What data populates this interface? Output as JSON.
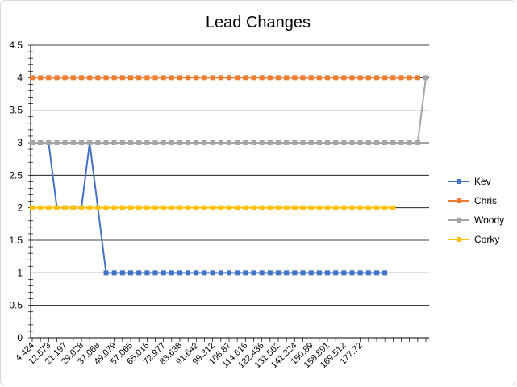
{
  "chart_data": {
    "type": "line",
    "title": "Lead Changes",
    "xlabel": "",
    "ylabel": "",
    "ylim": [
      0,
      4.5
    ],
    "ytick_step": 0.5,
    "yticks": [
      "0",
      "0.5",
      "1",
      "1.5",
      "2",
      "2.5",
      "3",
      "3.5",
      "4",
      "4.5"
    ],
    "grid": true,
    "legend": "right",
    "x_point_count": 49,
    "xtick_labels": [
      "4.424",
      "12.573",
      "21.197",
      "29.028",
      "37.068",
      "49.079",
      "57.065",
      "65.016",
      "72.977",
      "83.638",
      "91.642",
      "99.312",
      "106.87",
      "114.616",
      "122.436",
      "131.562",
      "141.324",
      "150.89",
      "158.891",
      "169.512",
      "177.72"
    ],
    "series": [
      {
        "name": "Kev",
        "color": "#4472C4",
        "values": [
          3,
          3,
          3,
          2,
          2,
          2,
          2,
          3,
          2,
          1,
          1,
          1,
          1,
          1,
          1,
          1,
          1,
          1,
          1,
          1,
          1,
          1,
          1,
          1,
          1,
          1,
          1,
          1,
          1,
          1,
          1,
          1,
          1,
          1,
          1,
          1,
          1,
          1,
          1,
          1,
          1,
          1,
          1,
          1
        ]
      },
      {
        "name": "Chris",
        "color": "#ED7D31",
        "values": [
          4,
          4,
          4,
          4,
          4,
          4,
          4,
          4,
          4,
          4,
          4,
          4,
          4,
          4,
          4,
          4,
          4,
          4,
          4,
          4,
          4,
          4,
          4,
          4,
          4,
          4,
          4,
          4,
          4,
          4,
          4,
          4,
          4,
          4,
          4,
          4,
          4,
          4,
          4,
          4,
          4,
          4,
          4,
          4,
          4,
          4,
          4,
          4
        ]
      },
      {
        "name": "Woody",
        "color": "#A5A5A5",
        "values": [
          3,
          3,
          3,
          3,
          3,
          3,
          3,
          3,
          3,
          3,
          3,
          3,
          3,
          3,
          3,
          3,
          3,
          3,
          3,
          3,
          3,
          3,
          3,
          3,
          3,
          3,
          3,
          3,
          3,
          3,
          3,
          3,
          3,
          3,
          3,
          3,
          3,
          3,
          3,
          3,
          3,
          3,
          3,
          3,
          3,
          3,
          3,
          3,
          4
        ]
      },
      {
        "name": "Corky",
        "color": "#FFC000",
        "values": [
          2,
          2,
          2,
          2,
          2,
          2,
          2,
          2,
          2,
          2,
          2,
          2,
          2,
          2,
          2,
          2,
          2,
          2,
          2,
          2,
          2,
          2,
          2,
          2,
          2,
          2,
          2,
          2,
          2,
          2,
          2,
          2,
          2,
          2,
          2,
          2,
          2,
          2,
          2,
          2,
          2,
          2,
          2,
          2,
          2
        ]
      }
    ]
  }
}
